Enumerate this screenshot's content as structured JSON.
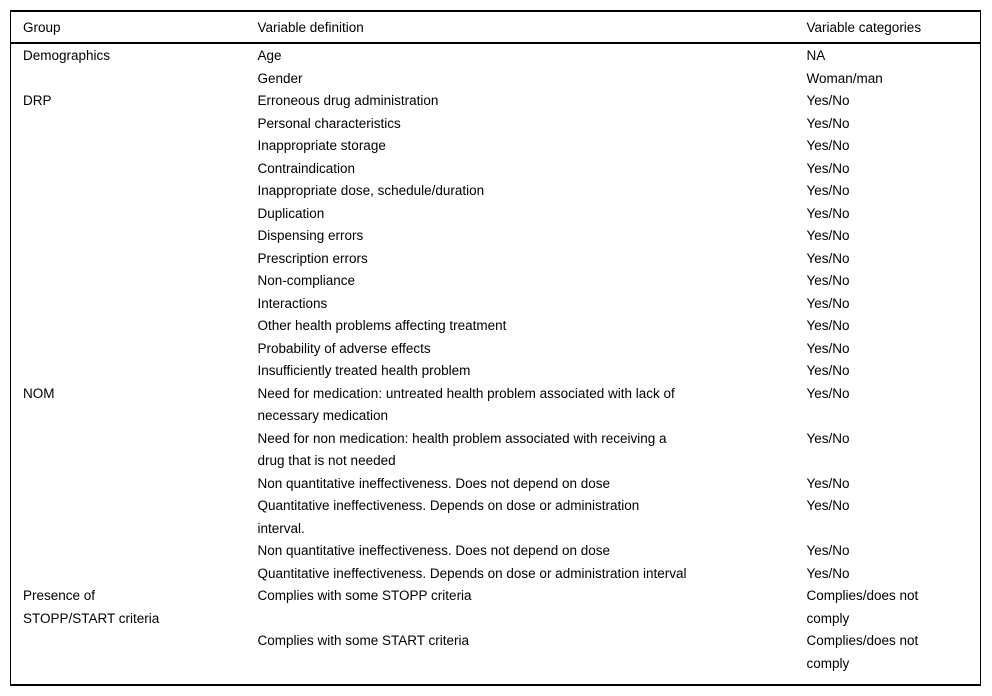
{
  "table": {
    "columns": [
      "Group",
      "Variable definition",
      "Variable categories"
    ],
    "rows": [
      {
        "group": "Demographics",
        "definition": "Age",
        "categories": "NA"
      },
      {
        "group": "",
        "definition": "Gender",
        "categories": "Woman/man"
      },
      {
        "group": "DRP",
        "definition": "Erroneous drug administration",
        "categories": "Yes/No"
      },
      {
        "group": "",
        "definition": "Personal characteristics",
        "categories": "Yes/No"
      },
      {
        "group": "",
        "definition": "Inappropriate storage",
        "categories": "Yes/No"
      },
      {
        "group": "",
        "definition": "Contraindication",
        "categories": "Yes/No"
      },
      {
        "group": "",
        "definition": "Inappropriate dose, schedule/duration",
        "categories": "Yes/No"
      },
      {
        "group": "",
        "definition": "Duplication",
        "categories": "Yes/No"
      },
      {
        "group": "",
        "definition": "Dispensing errors",
        "categories": "Yes/No"
      },
      {
        "group": "",
        "definition": "Prescription errors",
        "categories": "Yes/No"
      },
      {
        "group": "",
        "definition": "Non-compliance",
        "categories": "Yes/No"
      },
      {
        "group": "",
        "definition": "Interactions",
        "categories": "Yes/No"
      },
      {
        "group": "",
        "definition": "Other health problems affecting treatment",
        "categories": "Yes/No"
      },
      {
        "group": "",
        "definition": "Probability of adverse effects",
        "categories": "Yes/No"
      },
      {
        "group": "",
        "definition": "Insufficiently treated health problem",
        "categories": "Yes/No"
      },
      {
        "group": "NOM",
        "definition": "Need for medication: untreated health problem associated with lack of\nnecessary medication",
        "categories": "Yes/No"
      },
      {
        "group": "",
        "definition": "Need for non medication: health problem associated with receiving a\ndrug that is not needed",
        "categories": "Yes/No"
      },
      {
        "group": "",
        "definition": "Non quantitative ineffectiveness. Does not depend on dose",
        "categories": "Yes/No"
      },
      {
        "group": "",
        "definition": "Quantitative ineffectiveness. Depends on dose or administration\ninterval.",
        "categories": "Yes/No"
      },
      {
        "group": "",
        "definition": "Non quantitative ineffectiveness. Does not depend on dose",
        "categories": "Yes/No"
      },
      {
        "group": "",
        "definition": "Quantitative ineffectiveness. Depends on dose or administration interval",
        "categories": "Yes/No"
      },
      {
        "group": "Presence of\nSTOPP/START criteria",
        "definition": "Complies with some STOPP criteria",
        "categories": "Complies/does not\ncomply"
      },
      {
        "group": "",
        "definition": "Complies with some START criteria",
        "categories": "Complies/does not\ncomply"
      }
    ]
  }
}
